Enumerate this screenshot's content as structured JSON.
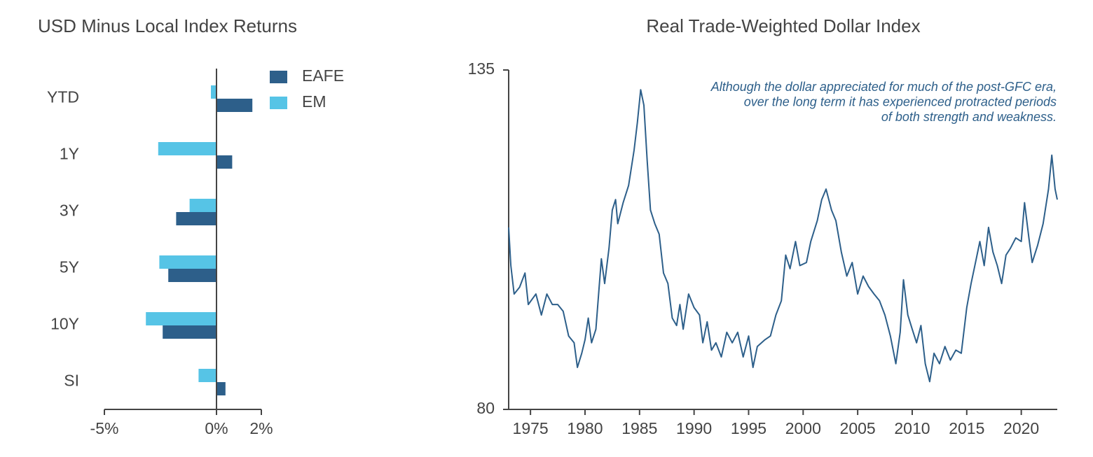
{
  "chart_data": [
    {
      "type": "barh",
      "title": "USD Minus Local Index Returns",
      "categories": [
        "YTD",
        "1Y",
        "3Y",
        "5Y",
        "10Y",
        "SI"
      ],
      "series": [
        {
          "name": "EAFE",
          "color": "#2d5f8a",
          "values": [
            1.6,
            0.7,
            -1.8,
            -2.15,
            -2.4,
            0.4
          ]
        },
        {
          "name": "EM",
          "color": "#56c4e6",
          "values": [
            -0.25,
            -2.6,
            -1.2,
            -2.55,
            -3.15,
            -0.8
          ]
        }
      ],
      "xlim": [
        -5,
        2
      ],
      "xticks": [
        {
          "value": -5,
          "label": "-5%"
        },
        {
          "value": 0,
          "label": "0%"
        },
        {
          "value": 2,
          "label": "2%"
        }
      ],
      "legend": "upper right",
      "grid": false
    },
    {
      "type": "line",
      "title": "Real Trade-Weighted Dollar Index",
      "annotation": [
        "Although the dollar appreciated for much of the post-GFC era,",
        "over the long term it has experienced protracted periods",
        "of both strength and weakness."
      ],
      "x": [
        1973.0,
        1973.2,
        1973.5,
        1974.0,
        1974.5,
        1974.8,
        1975.5,
        1976.0,
        1976.5,
        1977.0,
        1977.5,
        1978.0,
        1978.5,
        1979.0,
        1979.3,
        1979.7,
        1980.0,
        1980.3,
        1980.6,
        1981.0,
        1981.3,
        1981.5,
        1981.8,
        1982.2,
        1982.5,
        1982.8,
        1983.0,
        1983.5,
        1984.0,
        1984.5,
        1984.8,
        1985.1,
        1985.4,
        1985.7,
        1986.0,
        1986.4,
        1986.8,
        1987.2,
        1987.6,
        1988.0,
        1988.4,
        1988.7,
        1989.0,
        1989.5,
        1990.0,
        1990.5,
        1990.8,
        1991.2,
        1991.6,
        1992.0,
        1992.5,
        1993.0,
        1993.5,
        1994.0,
        1994.5,
        1995.0,
        1995.4,
        1995.8,
        1996.5,
        1997.0,
        1997.5,
        1998.0,
        1998.4,
        1998.8,
        1999.3,
        1999.7,
        2000.3,
        2000.7,
        2001.3,
        2001.7,
        2002.1,
        2002.6,
        2003.0,
        2003.5,
        2004.0,
        2004.5,
        2005.0,
        2005.5,
        2006.0,
        2006.5,
        2007.0,
        2007.5,
        2008.0,
        2008.5,
        2008.9,
        2009.2,
        2009.6,
        2010.0,
        2010.4,
        2010.8,
        2011.2,
        2011.6,
        2012.0,
        2012.5,
        2013.0,
        2013.5,
        2014.0,
        2014.5,
        2015.0,
        2015.4,
        2015.8,
        2016.2,
        2016.6,
        2017.0,
        2017.4,
        2017.8,
        2018.2,
        2018.6,
        2019.0,
        2019.5,
        2020.0,
        2020.3,
        2020.7,
        2021.0,
        2021.5,
        2022.0,
        2022.5,
        2022.8,
        2023.1,
        2023.3
      ],
      "series": [
        {
          "name": "Real Trade-Weighted Dollar Index",
          "color": "#2d5f8a",
          "values": [
            109.5,
            103.3,
            98.7,
            99.8,
            102.1,
            97.0,
            98.7,
            95.3,
            98.7,
            97.0,
            97.0,
            95.9,
            91.9,
            90.8,
            86.8,
            89.1,
            91.3,
            94.8,
            90.8,
            93.0,
            99.9,
            104.4,
            100.4,
            106.1,
            112.3,
            114.0,
            110.1,
            113.5,
            116.3,
            122.0,
            126.5,
            131.8,
            129.3,
            120.3,
            112.3,
            110.1,
            108.4,
            102.1,
            100.4,
            94.8,
            93.6,
            97.0,
            93.0,
            98.7,
            96.5,
            95.3,
            90.8,
            94.2,
            89.6,
            90.8,
            88.5,
            92.5,
            90.8,
            92.5,
            88.5,
            91.9,
            86.8,
            90.2,
            91.3,
            91.9,
            95.3,
            97.6,
            105.0,
            102.8,
            107.2,
            103.3,
            103.8,
            107.2,
            110.6,
            114.0,
            115.7,
            112.3,
            110.6,
            105.5,
            101.6,
            103.8,
            98.7,
            101.6,
            99.9,
            98.7,
            97.6,
            95.3,
            91.9,
            87.4,
            92.5,
            101.0,
            95.3,
            93.0,
            90.8,
            93.6,
            87.4,
            84.5,
            89.1,
            87.4,
            90.2,
            88.0,
            89.6,
            89.1,
            96.5,
            100.4,
            103.8,
            107.2,
            103.3,
            109.5,
            105.5,
            103.3,
            100.4,
            105.0,
            106.1,
            107.8,
            107.2,
            113.5,
            107.8,
            103.8,
            106.6,
            110.1,
            115.7,
            121.2,
            115.7,
            114.0
          ]
        }
      ],
      "xlim": [
        1973.0,
        2023.3
      ],
      "xticks": [
        1975,
        1980,
        1985,
        1990,
        1995,
        2000,
        2005,
        2010,
        2015,
        2020
      ],
      "ylim": [
        80,
        135
      ],
      "yticks": [
        80,
        135
      ],
      "grid": false
    }
  ]
}
